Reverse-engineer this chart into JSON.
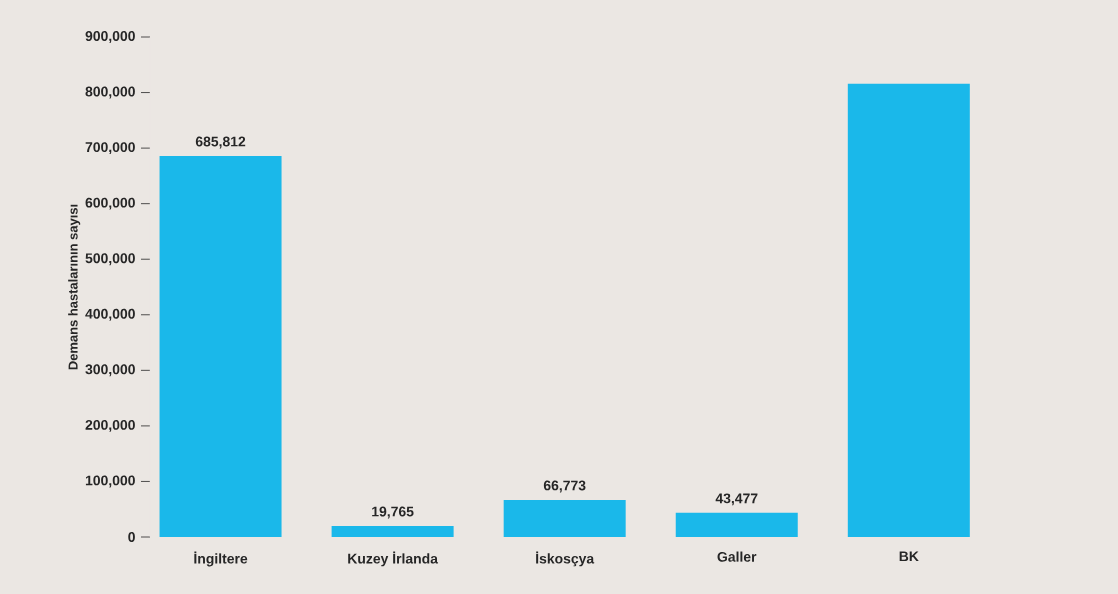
{
  "chart_data": {
    "type": "bar",
    "ylabel": "Demans hastalarının sayısı",
    "categories": [
      "İngiltere",
      "Kuzey İrlanda",
      "İskosçya",
      "Galler",
      "BK"
    ],
    "values": [
      685812,
      19765,
      66773,
      43477,
      816000
    ],
    "value_labels": [
      "685,812",
      "19,765",
      "66,773",
      "43,477",
      null
    ],
    "color": "#1ab8ea",
    "ylim": [
      0,
      900000
    ],
    "yticks": [
      0,
      {
        "value": 100000,
        "label": "100,000"
      },
      {
        "value": 200000,
        "label": "200,000"
      },
      {
        "value": 300000,
        "label": "300,000"
      },
      {
        "value": 400000,
        "label": "400,000"
      },
      {
        "value": 500000,
        "label": "500,000"
      },
      {
        "value": 600000,
        "label": "600,000"
      },
      {
        "value": 700000,
        "label": "700,000"
      },
      {
        "value": 800000,
        "label": "800,000"
      },
      {
        "value": 900000,
        "label": "900,000"
      }
    ],
    "grid": false
  }
}
